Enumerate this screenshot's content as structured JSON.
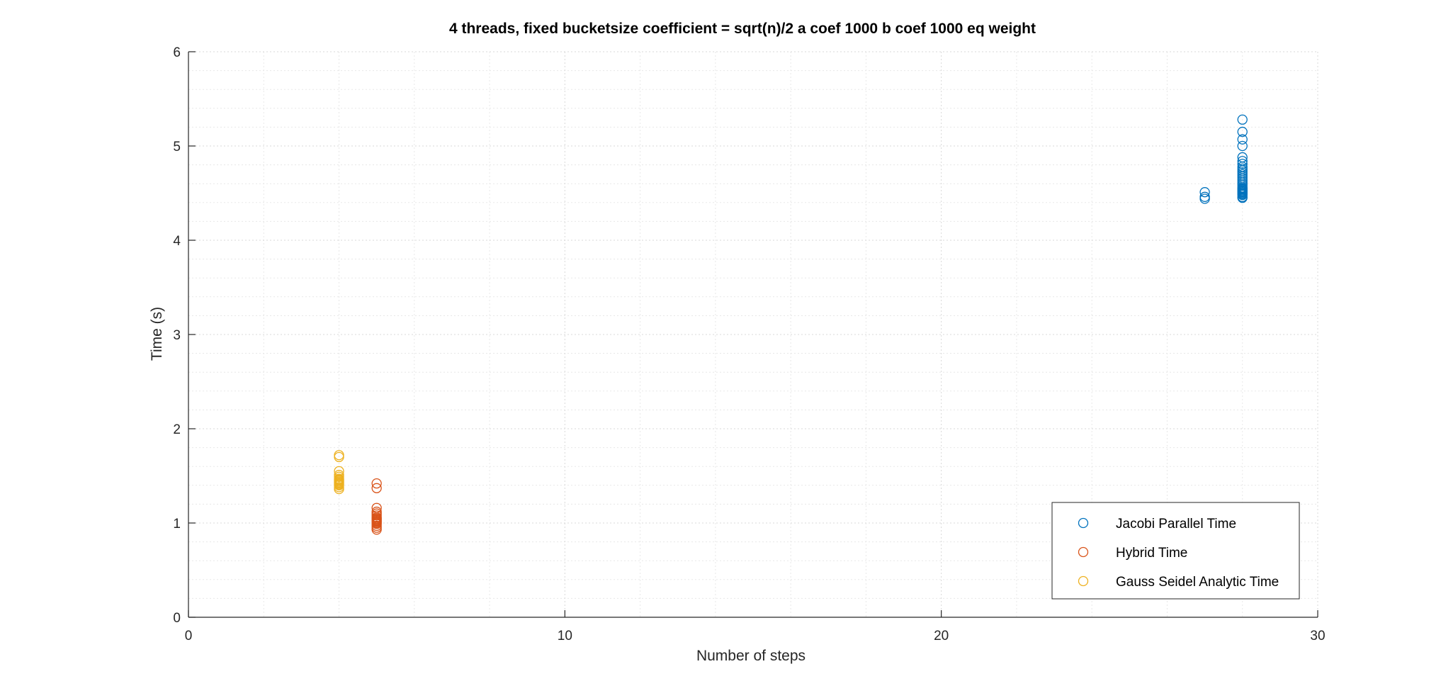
{
  "chart_data": {
    "type": "scatter",
    "title": "4 threads, fixed bucketsize coefficient = sqrt(n)/2 a coef 1000 b coef 1000 eq weight",
    "xlabel": "Number of steps",
    "ylabel": "Time (s)",
    "xlim": [
      0,
      30
    ],
    "ylim": [
      0,
      6
    ],
    "xticks": [
      "0",
      "10",
      "20",
      "30"
    ],
    "yticks": [
      "0",
      "1",
      "2",
      "3",
      "4",
      "5",
      "6"
    ],
    "grid": true,
    "minor_grid": true,
    "legend_position": "bottom-right",
    "series": [
      {
        "name": "Jacobi Parallel Time",
        "color": "#0072BD",
        "marker": "circle-open",
        "x": [
          27,
          27,
          27,
          28,
          28,
          28,
          28,
          28,
          28,
          28,
          28,
          28,
          28,
          28,
          28,
          28,
          28,
          28,
          28,
          28,
          28,
          28,
          28,
          28,
          28,
          28,
          28,
          28,
          28,
          28,
          28,
          28
        ],
        "y": [
          4.44,
          4.46,
          4.51,
          5.28,
          5.15,
          5.07,
          5.0,
          4.88,
          4.84,
          4.81,
          4.78,
          4.76,
          4.74,
          4.72,
          4.7,
          4.68,
          4.66,
          4.64,
          4.62,
          4.6,
          4.58,
          4.56,
          4.55,
          4.54,
          4.53,
          4.52,
          4.51,
          4.5,
          4.49,
          4.48,
          4.46,
          4.45
        ]
      },
      {
        "name": "Hybrid Time",
        "color": "#D95319",
        "marker": "circle-open",
        "x": [
          5,
          5,
          5,
          5,
          5,
          5,
          5,
          5,
          5,
          5,
          5,
          5,
          5,
          5,
          5,
          5,
          5
        ],
        "y": [
          1.42,
          1.37,
          1.16,
          1.12,
          1.1,
          1.08,
          1.06,
          1.05,
          1.04,
          1.03,
          1.02,
          1.01,
          1.0,
          0.99,
          0.97,
          0.95,
          0.93
        ]
      },
      {
        "name": "Gauss Seidel Analytic Time",
        "color": "#EDB120",
        "marker": "circle-open",
        "x": [
          4,
          4,
          4,
          4,
          4,
          4,
          4,
          4,
          4,
          4,
          4,
          4,
          4,
          4,
          4
        ],
        "y": [
          1.72,
          1.7,
          1.55,
          1.51,
          1.49,
          1.47,
          1.46,
          1.45,
          1.44,
          1.43,
          1.42,
          1.41,
          1.4,
          1.38,
          1.36
        ]
      }
    ]
  }
}
